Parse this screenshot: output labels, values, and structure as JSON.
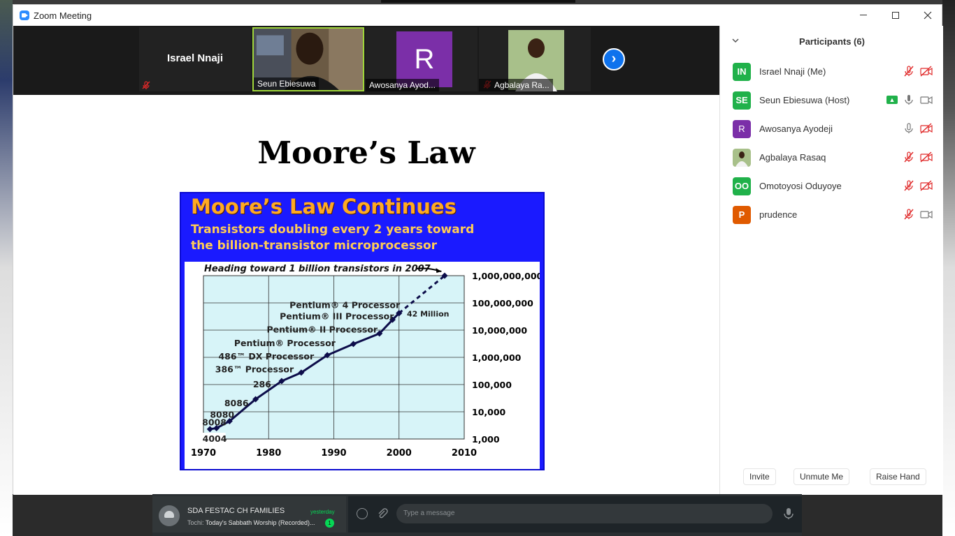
{
  "window": {
    "title": "Zoom Meeting",
    "brand_color": "#2d8cff"
  },
  "video_strip": {
    "tiles": [
      {
        "name": "Israel Nnaji",
        "muted": true
      },
      {
        "name": "Seun Ebiesuwa",
        "active_speaker": true
      },
      {
        "name": "Awosanya Ayod...",
        "avatar_letter": "R",
        "avatar_color": "#7b2fa8"
      },
      {
        "name": "Agbalaya Ra...",
        "muted": true
      }
    ],
    "next_icon": "chevron-right-icon"
  },
  "slide": {
    "title": "Moore’s Law"
  },
  "chart_data": {
    "type": "scatter",
    "title": "Moore’s Law Continues",
    "subtitle_line1": "Transistors doubling every 2 years toward",
    "subtitle_line2": "the billion-transistor microprocessor",
    "annotation_top": "Heading toward 1 billion transistors in 2007",
    "annotation_42m": "42 Million",
    "scale": "log",
    "x_ticks": [
      "1970",
      "1980",
      "1990",
      "2000",
      "2010"
    ],
    "y_ticks": [
      "1,000",
      "10,000",
      "100,000",
      "1,000,000",
      "10,000,000",
      "100,000,000",
      "1,000,000,000"
    ],
    "xlim": [
      1970,
      2010
    ],
    "ylim": [
      1000,
      1000000000
    ],
    "grid": true,
    "series": [
      {
        "values": [
          {
            "x": 1971,
            "y": 2300
          },
          {
            "x": 1972,
            "y": 2500
          },
          {
            "x": 1974,
            "y": 4500
          },
          {
            "x": 1978,
            "y": 29000
          },
          {
            "x": 1982,
            "y": 134000
          },
          {
            "x": 1985,
            "y": 275000
          },
          {
            "x": 1989,
            "y": 1200000
          },
          {
            "x": 1993,
            "y": 3100000
          },
          {
            "x": 1997,
            "y": 7500000
          },
          {
            "x": 1999,
            "y": 24000000
          },
          {
            "x": 2000,
            "y": 42000000
          }
        ]
      },
      {
        "style": "dashed",
        "values": [
          {
            "x": 2000,
            "y": 42000000
          },
          {
            "x": 2007,
            "y": 1000000000
          }
        ]
      }
    ],
    "point_labels": [
      {
        "text": "4004",
        "x": 1970.5,
        "y": 1000,
        "boxed": true
      },
      {
        "text": "8008",
        "x": 1969.8,
        "y": 3200
      },
      {
        "text": "8080",
        "x": 1971,
        "y": 6000
      },
      {
        "text": "8086",
        "x": 1973.2,
        "y": 16000
      },
      {
        "text": "286",
        "x": 1977.6,
        "y": 80000
      },
      {
        "text": "386™ Processor",
        "x": 1971.8,
        "y": 280000
      },
      {
        "text": "486™ DX Processor",
        "x": 1972.3,
        "y": 850000
      },
      {
        "text": "Pentium® Processor",
        "x": 1974.7,
        "y": 2600000
      },
      {
        "text": "Pentium® II Processor",
        "x": 1979.7,
        "y": 8200000
      },
      {
        "text": "Pentium® III Processor",
        "x": 1981.7,
        "y": 25000000
      },
      {
        "text": "Pentium® 4 Processor",
        "x": 1983.2,
        "y": 65000000
      }
    ],
    "colors": {
      "header_bg": "#1a1aff",
      "plot_bg": "#d7f4f8",
      "series": "#0d0d4a",
      "title": "#ffaa22",
      "subtitle": "#ffcc55"
    }
  },
  "participants": {
    "title": "Participants (6)",
    "list": [
      {
        "initials": "IN",
        "color": "#20b14a",
        "name": "Israel Nnaji (Me)",
        "mic": "off",
        "cam": "off"
      },
      {
        "initials": "SE",
        "color": "#20b14a",
        "name": "Seun Ebiesuwa (Host)",
        "sharing": true,
        "mic": "on",
        "cam": "on"
      },
      {
        "initials": "R",
        "color": "#7b2fa8",
        "name": "Awosanya Ayodeji",
        "mic": "on",
        "cam": "off"
      },
      {
        "initials": "",
        "color": "#8a5a3a",
        "name": "Agbalaya Rasaq",
        "mic": "off",
        "cam": "off",
        "photo": true
      },
      {
        "initials": "OO",
        "color": "#20b14a",
        "name": "Omotoyosi Oduyoye",
        "mic": "off",
        "cam": "off"
      },
      {
        "initials": "P",
        "color": "#e05a00",
        "name": "prudence",
        "mic": "off",
        "cam": "on"
      }
    ],
    "buttons": {
      "invite": "Invite",
      "unmute": "Unmute Me",
      "raise_hand": "Raise Hand"
    }
  },
  "whatsapp": {
    "chat_name": "SDA FESTAC CH FAMILIES",
    "chat_time": "yesterday",
    "chat_sender": "Tochi:",
    "chat_preview": "Today's Sabbath Worship (Recorded)...",
    "unread": "1",
    "input_placeholder": "Type a message"
  }
}
